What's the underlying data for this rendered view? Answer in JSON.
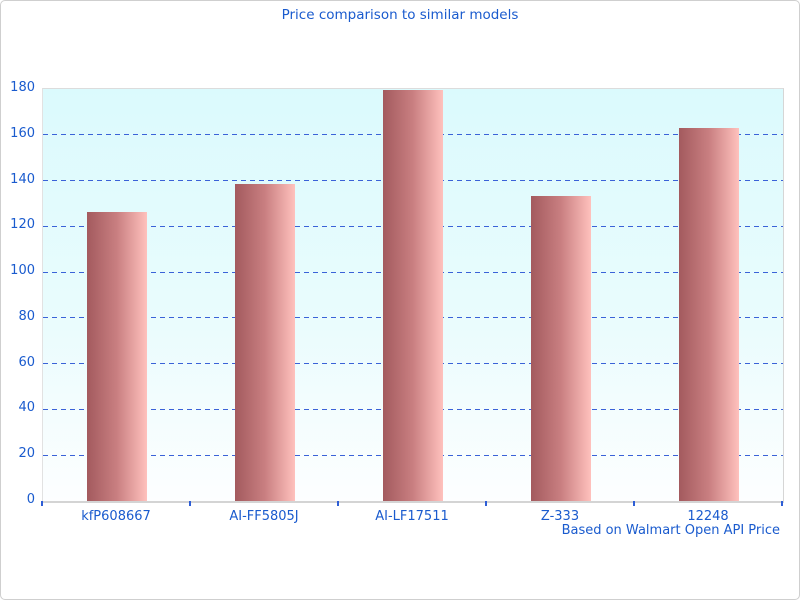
{
  "figure": {
    "title": "Price comparison to similar models",
    "footer": "Based on Walmart Open API Price"
  },
  "chart_data": {
    "type": "bar",
    "title": "Price comparison to similar models",
    "categories": [
      "kfP608667",
      "AI-FF5805J",
      "AI-LF17511",
      "Z-333",
      "12248"
    ],
    "values": [
      126.3,
      138.4,
      179.5,
      133.2,
      163.1
    ],
    "xlabel": "",
    "ylabel": "",
    "ylim": [
      0,
      180
    ],
    "ytick_step": 20,
    "grid": "horizontal-dashed",
    "legend": "none",
    "annotation": "Based on Walmart Open API Price",
    "colors": {
      "bar_gradient_left": "#a35a5e",
      "bar_gradient_mid": "#c97f81",
      "bar_gradient_right": "#ffc1bd",
      "plot_bg_top": "#dbfafd",
      "plot_bg_bottom": "#fdfeff",
      "grid_blue": "#3a62d8",
      "text_blue": "#1a5bce",
      "axis_gray": "#d4d4d4",
      "figure_border": "#cfcfcf"
    }
  }
}
